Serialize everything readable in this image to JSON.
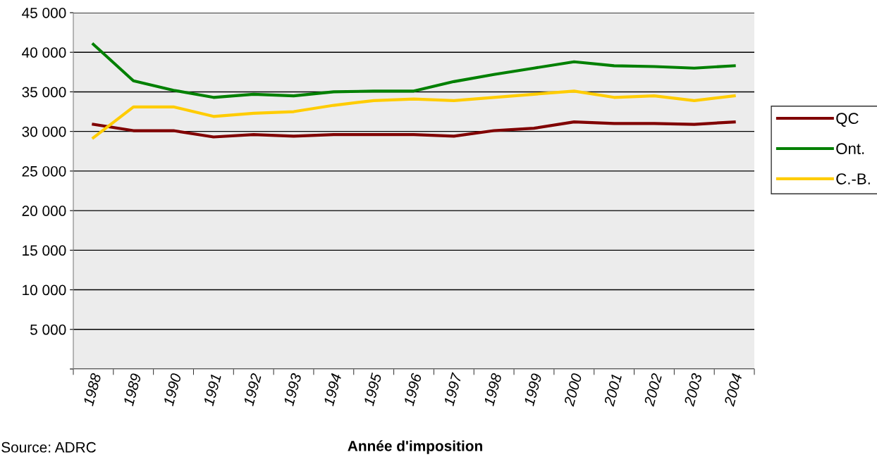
{
  "chart_data": {
    "type": "line",
    "xlabel": "Année d'imposition",
    "annotations": [
      "Source: ADRC"
    ],
    "categories": [
      "1988",
      "1989",
      "1990",
      "1991",
      "1992",
      "1993",
      "1994",
      "1995",
      "1996",
      "1997",
      "1998",
      "1999",
      "2000",
      "2001",
      "2002",
      "2003",
      "2004"
    ],
    "series": [
      {
        "name": "QC",
        "color": "#800000",
        "values": [
          30900,
          30100,
          30100,
          29300,
          29600,
          29400,
          29600,
          29600,
          29600,
          29400,
          30100,
          30400,
          31200,
          31000,
          31000,
          30900,
          31200
        ]
      },
      {
        "name": "Ont.",
        "color": "#008000",
        "values": [
          41000,
          36400,
          35200,
          34300,
          34700,
          34500,
          35000,
          35100,
          35100,
          36300,
          37200,
          38000,
          38800,
          38300,
          38200,
          38000,
          38300
        ]
      },
      {
        "name": "C.-B.",
        "color": "#ffcc00",
        "values": [
          29200,
          33100,
          33100,
          31900,
          32300,
          32500,
          33300,
          33900,
          34100,
          33900,
          34300,
          34700,
          35100,
          34300,
          34500,
          33900,
          34500
        ]
      }
    ],
    "ylim": [
      0,
      45000
    ],
    "yticks": [
      {
        "value": 0,
        "label": null
      },
      {
        "value": 5000,
        "label": "5 000"
      },
      {
        "value": 10000,
        "label": "10 000"
      },
      {
        "value": 15000,
        "label": "15 000"
      },
      {
        "value": 20000,
        "label": "20 000"
      },
      {
        "value": 25000,
        "label": "25 000"
      },
      {
        "value": 30000,
        "label": "30 000"
      },
      {
        "value": 35000,
        "label": "35 000"
      },
      {
        "value": 40000,
        "label": "40 000"
      },
      {
        "value": 45000,
        "label": "45 000"
      }
    ],
    "grid": "y",
    "legend": "right",
    "marker": "none",
    "line_style": "solid"
  }
}
